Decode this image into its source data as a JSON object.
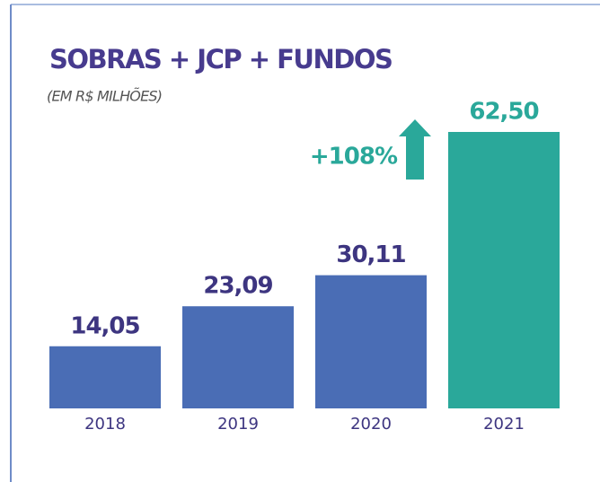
{
  "chart_data": {
    "type": "bar",
    "title": "SOBRAS + JCP + FUNDOS",
    "subtitle": "(EM R$ MILHÕES)",
    "categories": [
      "2018",
      "2019",
      "2020",
      "2021"
    ],
    "values": [
      14.05,
      23.09,
      30.11,
      62.5
    ],
    "value_labels": [
      "14,05",
      "23,09",
      "30,11",
      "62,50"
    ],
    "colors": [
      "#4a6db5",
      "#4a6db5",
      "#4a6db5",
      "#2aa89a"
    ],
    "annotation": "+108%"
  }
}
